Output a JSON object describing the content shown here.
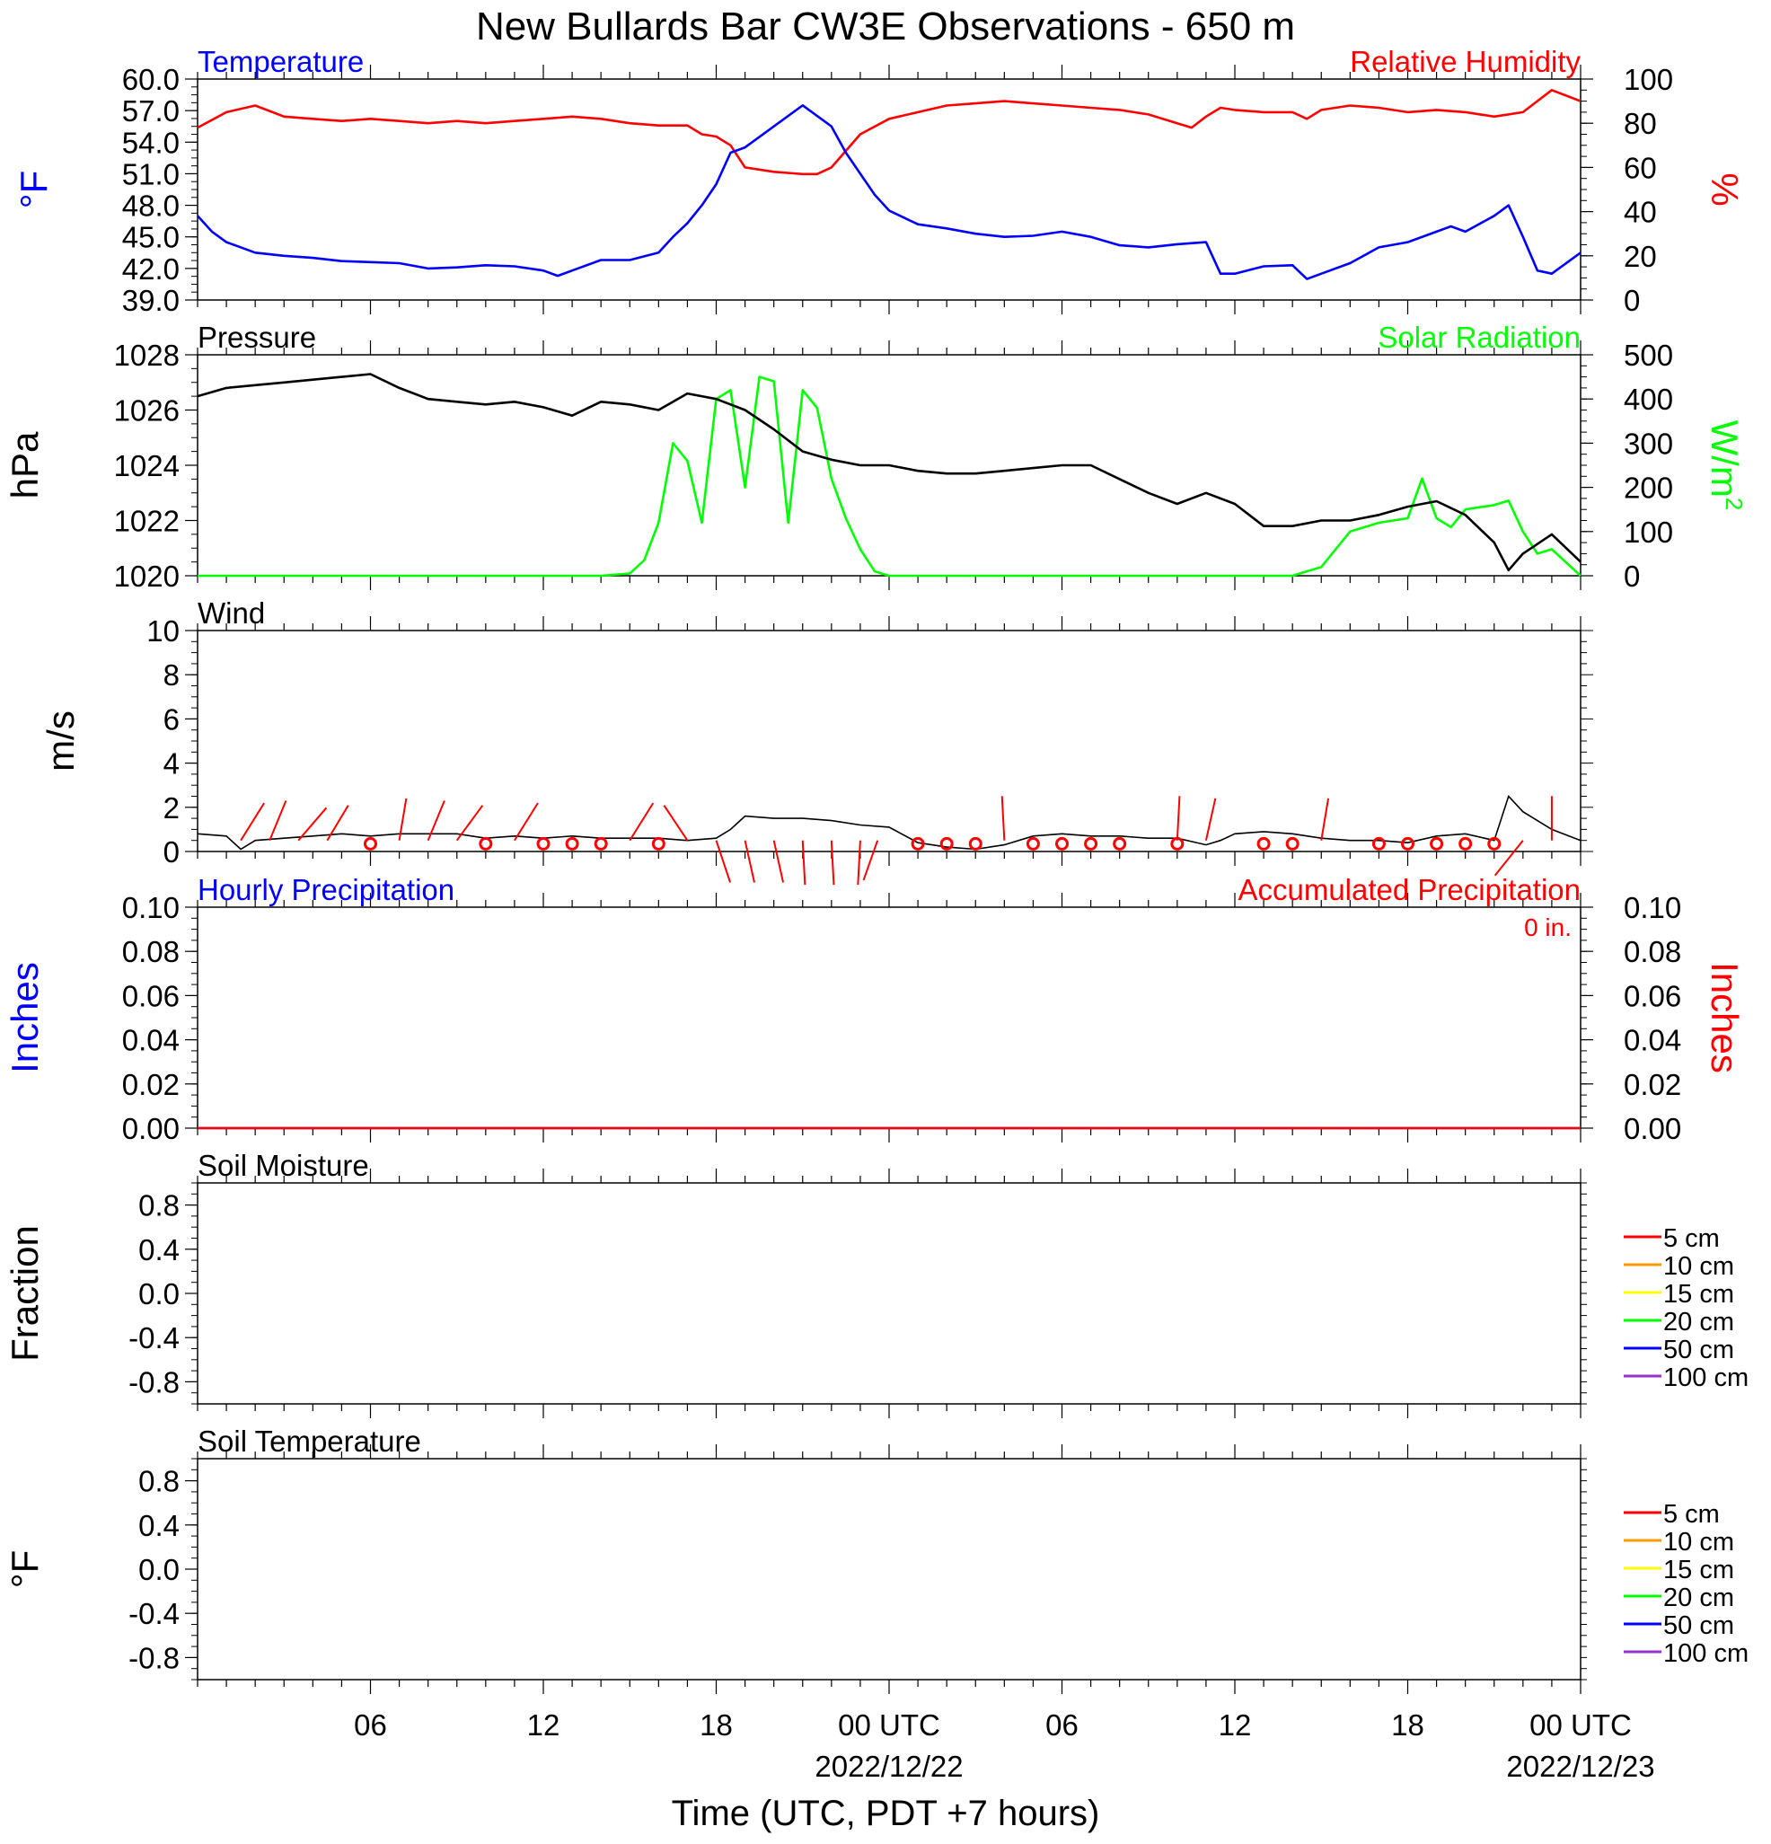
{
  "title": "New Bullards Bar CW3E Observations - 650 m",
  "xlabel": "Time (UTC, PDT +7 hours)",
  "x_axis": {
    "range_hours": [
      0,
      48
    ],
    "ticks": [
      {
        "hour": 6,
        "label": "06",
        "date": ""
      },
      {
        "hour": 12,
        "label": "12",
        "date": ""
      },
      {
        "hour": 18,
        "label": "18",
        "date": ""
      },
      {
        "hour": 24,
        "label": "00 UTC",
        "date": "2022/12/22"
      },
      {
        "hour": 30,
        "label": "06",
        "date": ""
      },
      {
        "hour": 36,
        "label": "12",
        "date": ""
      },
      {
        "hour": 42,
        "label": "18",
        "date": ""
      },
      {
        "hour": 48,
        "label": "00 UTC",
        "date": "2022/12/23"
      }
    ]
  },
  "panels": {
    "temp": {
      "left_title": "Temperature",
      "right_title": "Relative Humidity",
      "left_unit": "°F",
      "right_unit": "%",
      "left_ticks": [
        "39.0",
        "42.0",
        "45.0",
        "48.0",
        "51.0",
        "54.0",
        "57.0",
        "60.0"
      ],
      "right_ticks": [
        "0",
        "20",
        "40",
        "60",
        "80",
        "100"
      ]
    },
    "pressure": {
      "left_title": "Pressure",
      "right_title": "Solar Radiation",
      "left_unit": "hPa",
      "right_unit": "W/m",
      "right_unit_sup": "2",
      "left_ticks": [
        "1020",
        "1022",
        "1024",
        "1026",
        "1028"
      ],
      "right_ticks": [
        "0",
        "100",
        "200",
        "300",
        "400",
        "500"
      ]
    },
    "wind": {
      "left_title": "Wind",
      "left_unit": "m/s",
      "left_ticks": [
        "0",
        "2",
        "4",
        "6",
        "8",
        "10"
      ]
    },
    "precip": {
      "left_title": "Hourly Precipitation",
      "right_title": "Accumulated Precipitation",
      "left_unit": "Inches",
      "right_unit": "Inches",
      "total_label": "0 in.",
      "left_ticks": [
        "0.00",
        "0.02",
        "0.04",
        "0.06",
        "0.08",
        "0.10"
      ],
      "right_ticks": [
        "0.00",
        "0.02",
        "0.04",
        "0.06",
        "0.08",
        "0.10"
      ]
    },
    "soil_moist": {
      "left_title": "Soil Moisture",
      "left_unit": "Fraction",
      "left_ticks": [
        "-0.8",
        "-0.4",
        "0.0",
        "0.4",
        "0.8"
      ],
      "legend": [
        {
          "label": "5 cm",
          "color": "#ff0000"
        },
        {
          "label": "10 cm",
          "color": "#ff9900"
        },
        {
          "label": "15 cm",
          "color": "#ffff00"
        },
        {
          "label": "20 cm",
          "color": "#00ff00"
        },
        {
          "label": "50 cm",
          "color": "#0000ff"
        },
        {
          "label": "100 cm",
          "color": "#9932cc"
        }
      ]
    },
    "soil_temp": {
      "left_title": "Soil Temperature",
      "left_unit": "°F",
      "left_ticks": [
        "-0.8",
        "-0.4",
        "0.0",
        "0.4",
        "0.8"
      ],
      "legend": [
        {
          "label": "5 cm",
          "color": "#ff0000"
        },
        {
          "label": "10 cm",
          "color": "#ff9900"
        },
        {
          "label": "15 cm",
          "color": "#ffff00"
        },
        {
          "label": "20 cm",
          "color": "#00ff00"
        },
        {
          "label": "50 cm",
          "color": "#0000ff"
        },
        {
          "label": "100 cm",
          "color": "#9932cc"
        }
      ]
    }
  },
  "chart_data": {
    "type": "line",
    "title": "New Bullards Bar CW3E Observations - 650 m",
    "xlabel": "Time (UTC, PDT +7 hours)",
    "x_unit": "hours since 2022-12-21 00 UTC",
    "series": [
      {
        "name": "Temperature",
        "panel": "temp",
        "axis": "left",
        "color": "#0000ff",
        "ylim": [
          39,
          60
        ],
        "x": [
          0,
          0.5,
          1,
          2,
          3,
          4,
          5,
          6,
          7,
          8,
          9,
          10,
          11,
          12,
          12.5,
          13,
          14,
          15,
          16,
          16.5,
          17,
          17.5,
          18,
          18.5,
          19,
          19.5,
          20,
          21,
          22,
          22.5,
          23,
          23.5,
          24,
          25,
          26,
          27,
          28,
          29,
          30,
          31,
          32,
          33,
          34,
          35,
          35.5,
          36,
          37,
          38,
          38.5,
          39,
          40,
          41,
          42,
          43,
          43.5,
          44,
          45,
          45.5,
          46,
          46.5,
          47,
          48
        ],
        "y": [
          47.0,
          45.5,
          44.5,
          43.5,
          43.2,
          43.0,
          42.7,
          42.6,
          42.5,
          42.0,
          42.1,
          42.3,
          42.2,
          41.8,
          41.3,
          41.8,
          42.8,
          42.8,
          43.5,
          45.0,
          46.3,
          48.0,
          50.0,
          53.0,
          53.5,
          54.5,
          55.5,
          57.5,
          55.5,
          53.0,
          51.0,
          49.0,
          47.5,
          46.2,
          45.8,
          45.3,
          45.0,
          45.1,
          45.5,
          45.0,
          44.2,
          44.0,
          44.3,
          44.5,
          41.5,
          41.5,
          42.2,
          42.3,
          41.0,
          41.5,
          42.5,
          44.0,
          44.5,
          45.5,
          46.0,
          45.5,
          47.0,
          48.0,
          45.0,
          41.8,
          41.5,
          43.5
        ]
      },
      {
        "name": "Relative Humidity",
        "panel": "temp",
        "axis": "right",
        "color": "#ff0000",
        "ylim": [
          0,
          100
        ],
        "x": [
          0,
          1,
          2,
          3,
          4,
          5,
          6,
          7,
          8,
          9,
          10,
          11,
          12,
          13,
          14,
          15,
          16,
          17,
          17.5,
          18,
          18.5,
          19,
          20,
          21,
          21.5,
          22,
          23,
          24,
          25,
          26,
          27,
          28,
          29,
          30,
          31,
          32,
          33,
          34,
          34.5,
          35,
          35.5,
          36,
          37,
          38,
          38.5,
          39,
          40,
          41,
          42,
          43,
          44,
          45,
          46,
          47,
          48
        ],
        "y": [
          78,
          85,
          88,
          83,
          82,
          81,
          82,
          81,
          80,
          81,
          80,
          81,
          82,
          83,
          82,
          80,
          79,
          79,
          75,
          74,
          70,
          60,
          58,
          57,
          57,
          60,
          75,
          82,
          85,
          88,
          89,
          90,
          89,
          88,
          87,
          86,
          84,
          80,
          78,
          83,
          87,
          86,
          85,
          85,
          82,
          86,
          88,
          87,
          85,
          86,
          85,
          83,
          85,
          95,
          90
        ]
      },
      {
        "name": "Pressure",
        "panel": "pressure",
        "axis": "left",
        "color": "#000000",
        "ylim": [
          1020,
          1028
        ],
        "x": [
          0,
          1,
          2,
          3,
          4,
          5,
          6,
          7,
          8,
          9,
          10,
          11,
          12,
          13,
          14,
          15,
          16,
          17,
          18,
          19,
          20,
          21,
          22,
          23,
          24,
          25,
          26,
          27,
          28,
          29,
          30,
          31,
          32,
          33,
          34,
          35,
          36,
          37,
          38,
          39,
          40,
          41,
          42,
          43,
          44,
          45,
          45.5,
          46,
          47,
          48
        ],
        "y": [
          1026.5,
          1026.8,
          1026.9,
          1027.0,
          1027.1,
          1027.2,
          1027.3,
          1026.8,
          1026.4,
          1026.3,
          1026.2,
          1026.3,
          1026.1,
          1025.8,
          1026.3,
          1026.2,
          1026.0,
          1026.6,
          1026.4,
          1026.0,
          1025.3,
          1024.5,
          1024.2,
          1024.0,
          1024.0,
          1023.8,
          1023.7,
          1023.7,
          1023.8,
          1023.9,
          1024.0,
          1024.0,
          1023.5,
          1023.0,
          1022.6,
          1023.0,
          1022.6,
          1021.8,
          1021.8,
          1022.0,
          1022.0,
          1022.2,
          1022.5,
          1022.7,
          1022.2,
          1021.2,
          1020.2,
          1020.8,
          1021.5,
          1020.5
        ]
      },
      {
        "name": "Solar Radiation",
        "panel": "pressure",
        "axis": "right",
        "color": "#00ff00",
        "ylim": [
          0,
          500
        ],
        "x": [
          0,
          14,
          15,
          15.5,
          16,
          16.5,
          17,
          17.5,
          18,
          18.5,
          19,
          19.5,
          20,
          20.5,
          21,
          21.5,
          22,
          22.5,
          23,
          23.5,
          24,
          38,
          39,
          40,
          41,
          42,
          42.5,
          43,
          43.5,
          44,
          45,
          45.5,
          46,
          46.5,
          47,
          48
        ],
        "y": [
          0,
          0,
          5,
          35,
          120,
          300,
          260,
          120,
          400,
          420,
          200,
          450,
          440,
          120,
          420,
          380,
          220,
          130,
          60,
          10,
          0,
          0,
          20,
          100,
          120,
          130,
          220,
          130,
          110,
          150,
          160,
          170,
          100,
          50,
          60,
          0
        ],
        "note": ""
      },
      {
        "name": "Wind Speed",
        "panel": "wind",
        "axis": "left",
        "color": "#000000",
        "ylim": [
          0,
          10
        ],
        "x": [
          0,
          1,
          1.5,
          2,
          3,
          4,
          5,
          6,
          7,
          8,
          9,
          10,
          11,
          12,
          13,
          14,
          15,
          16,
          17,
          18,
          18.5,
          19,
          20,
          21,
          22,
          23,
          24,
          25,
          26,
          27,
          28,
          29,
          30,
          31,
          32,
          33,
          34,
          35,
          35.5,
          36,
          37,
          38,
          39,
          40,
          41,
          42,
          43,
          44,
          45,
          45.5,
          46,
          47,
          48
        ],
        "y": [
          0.8,
          0.7,
          0.1,
          0.5,
          0.6,
          0.7,
          0.8,
          0.7,
          0.8,
          0.8,
          0.8,
          0.6,
          0.7,
          0.6,
          0.7,
          0.6,
          0.6,
          0.6,
          0.5,
          0.6,
          1.0,
          1.6,
          1.5,
          1.5,
          1.4,
          1.2,
          1.1,
          0.4,
          0.2,
          0.1,
          0.3,
          0.7,
          0.8,
          0.7,
          0.7,
          0.6,
          0.6,
          0.3,
          0.5,
          0.8,
          0.9,
          0.8,
          0.6,
          0.5,
          0.5,
          0.4,
          0.7,
          0.8,
          0.5,
          2.5,
          1.8,
          1.0,
          0.5
        ]
      },
      {
        "name": "Hourly Precipitation",
        "panel": "precip",
        "axis": "left",
        "color": "#0000ff",
        "ylim": [
          0,
          0.1
        ],
        "x": [
          0,
          48
        ],
        "y": [
          0,
          0
        ]
      },
      {
        "name": "Accumulated Precipitation",
        "panel": "precip",
        "axis": "right",
        "color": "#ff0000",
        "ylim": [
          0,
          0.1
        ],
        "x": [
          0,
          48
        ],
        "y": [
          0,
          0
        ]
      }
    ],
    "wind_calm_hours": [
      6,
      10,
      12,
      13,
      14,
      16,
      25,
      26,
      27,
      29,
      30,
      31,
      32,
      34,
      37,
      38,
      41,
      42,
      43,
      44,
      45
    ],
    "wind_sticks": [
      {
        "hour": 1.5,
        "dx": 0.5,
        "dy": -0.8
      },
      {
        "hour": 2.5,
        "dx": 0.35,
        "dy": -0.85
      },
      {
        "hour": 3.5,
        "dx": 0.6,
        "dy": -0.7
      },
      {
        "hour": 4.5,
        "dx": 0.45,
        "dy": -0.75
      },
      {
        "hour": 7,
        "dx": 0.15,
        "dy": -0.9
      },
      {
        "hour": 8,
        "dx": 0.35,
        "dy": -0.85
      },
      {
        "hour": 9,
        "dx": 0.55,
        "dy": -0.75
      },
      {
        "hour": 11,
        "dx": 0.5,
        "dy": -0.8
      },
      {
        "hour": 15,
        "dx": 0.5,
        "dy": -0.8
      },
      {
        "hour": 17,
        "dx": -0.5,
        "dy": -0.75
      },
      {
        "hour": 18,
        "dx": 0.3,
        "dy": 0.9
      },
      {
        "hour": 19,
        "dx": 0.2,
        "dy": 0.9
      },
      {
        "hour": 20,
        "dx": 0.2,
        "dy": 0.9
      },
      {
        "hour": 21,
        "dx": 0.05,
        "dy": 0.95
      },
      {
        "hour": 22,
        "dx": 0.05,
        "dy": 0.95
      },
      {
        "hour": 23,
        "dx": -0.05,
        "dy": 0.95
      },
      {
        "hour": 23.6,
        "dx": -0.3,
        "dy": 0.85
      },
      {
        "hour": 28,
        "dx": -0.05,
        "dy": -0.95
      },
      {
        "hour": 34,
        "dx": 0.05,
        "dy": -0.95
      },
      {
        "hour": 35,
        "dx": 0.2,
        "dy": -0.9
      },
      {
        "hour": 39,
        "dx": 0.15,
        "dy": -0.9
      },
      {
        "hour": 46,
        "dx": -0.6,
        "dy": 0.75
      },
      {
        "hour": 47,
        "dx": 0,
        "dy": -0.95
      }
    ]
  }
}
